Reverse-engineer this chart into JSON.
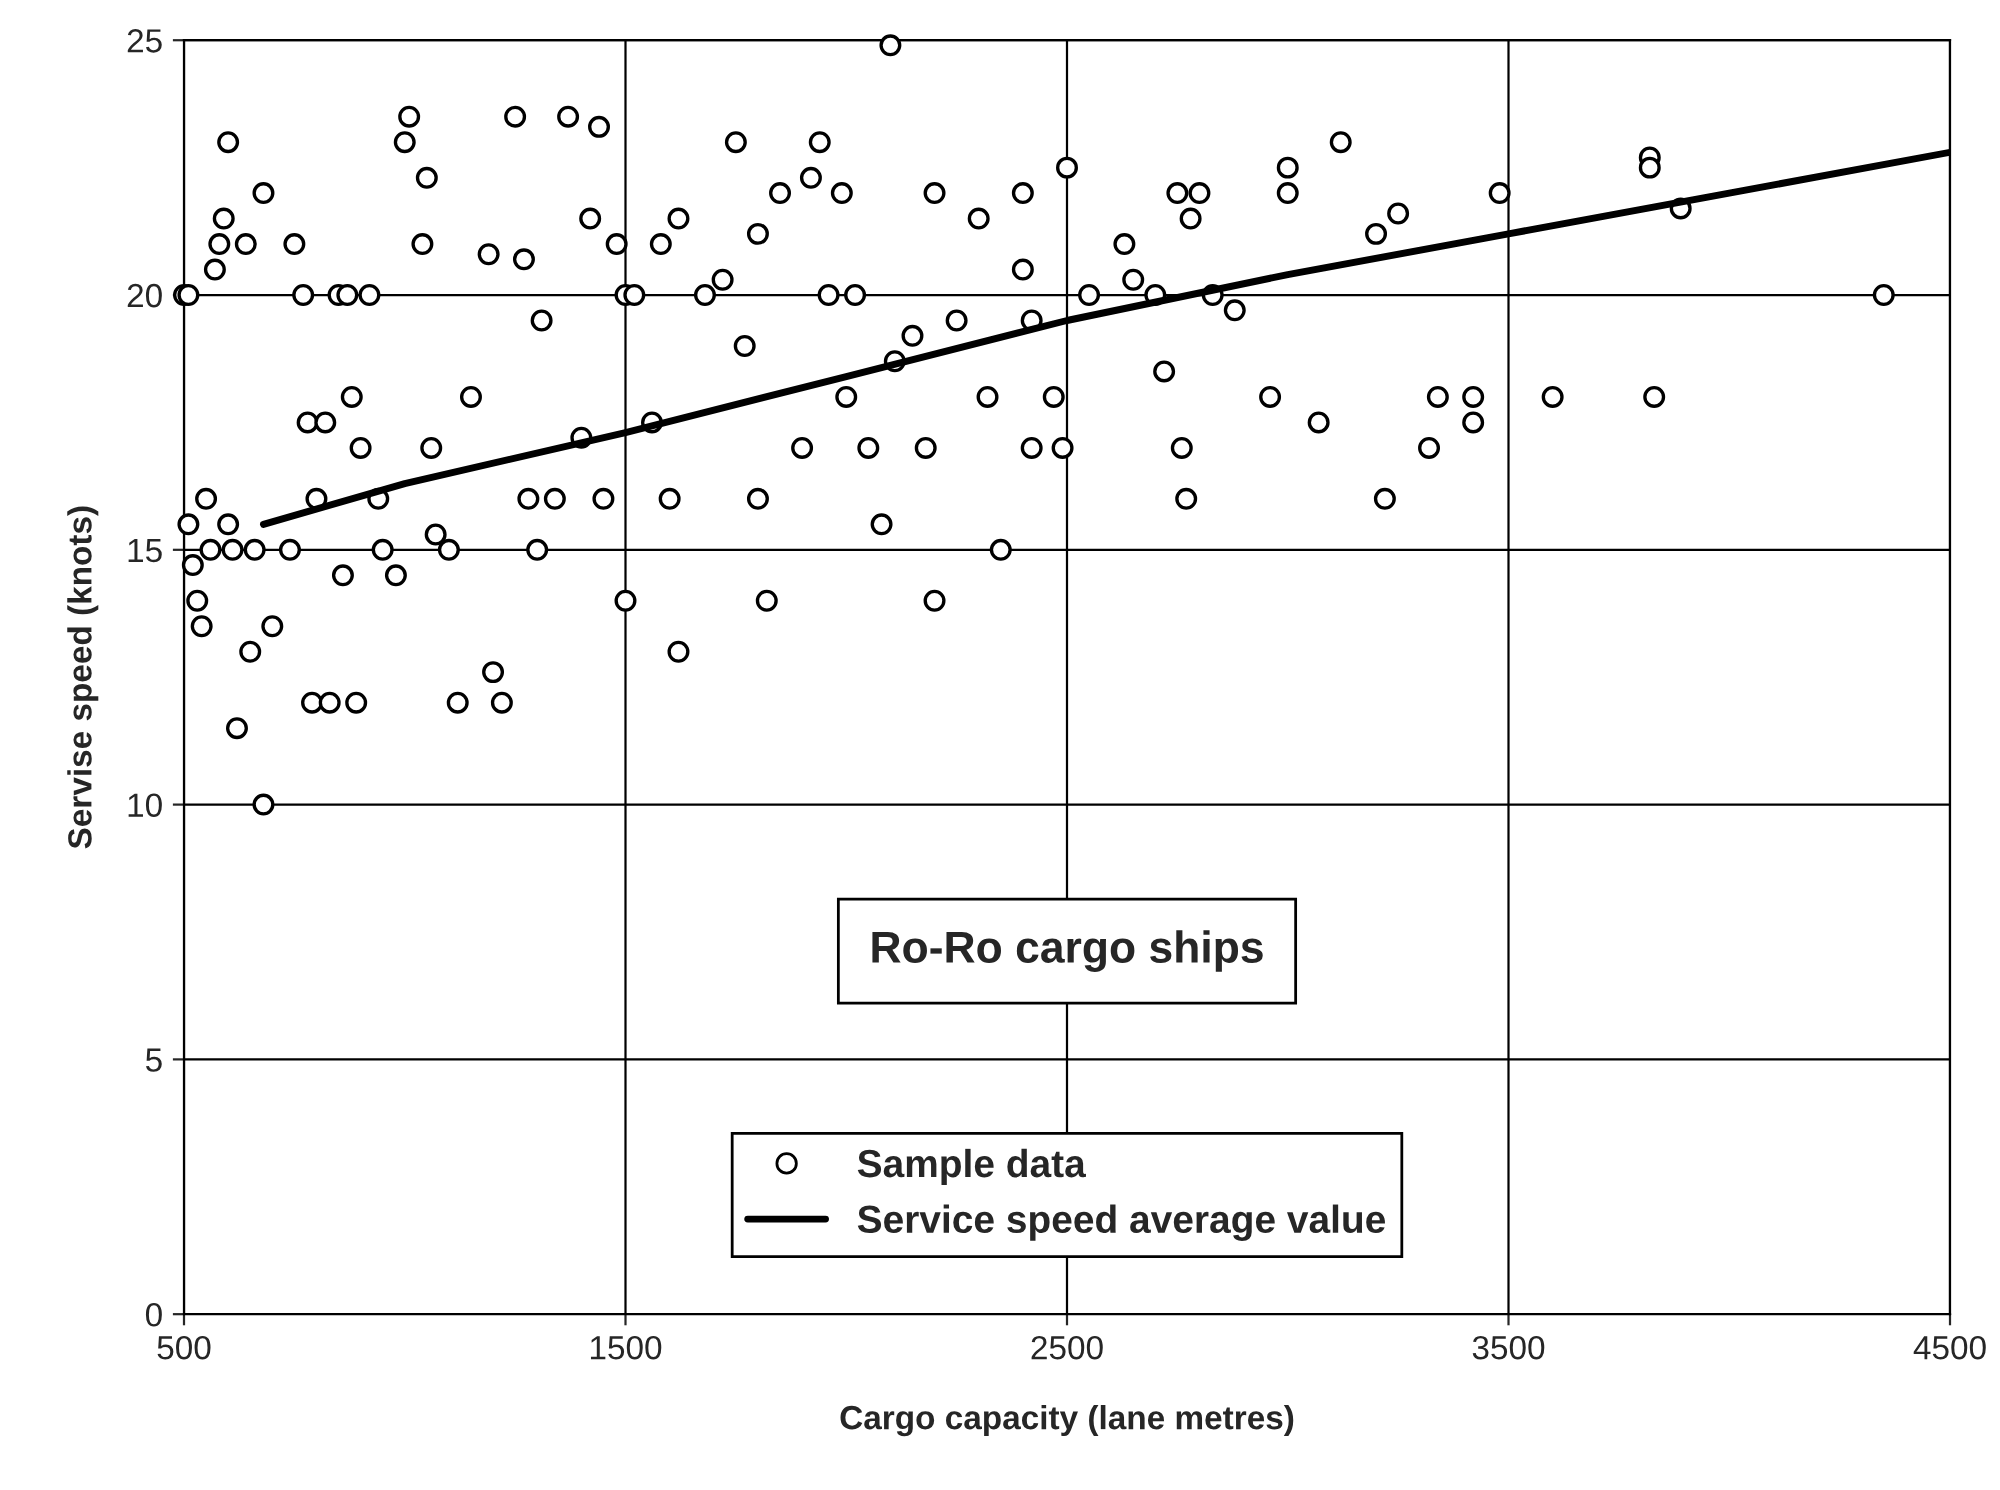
{
  "chart_data": {
    "type": "scatter",
    "xlabel": "Cargo capacity (lane metres)",
    "ylabel": "Servise speed (knots)",
    "xlim": [
      500,
      4500
    ],
    "xticks": [
      500,
      1500,
      2500,
      3500,
      4500
    ],
    "ylim": [
      0,
      25
    ],
    "yticks": [
      0,
      5,
      10,
      15,
      20,
      25
    ],
    "grid": true,
    "legend": "bottom",
    "annotations": [
      "Ro-Ro cargo ships"
    ],
    "series": [
      {
        "name": "Sample data",
        "marker": "circle",
        "color": "#000000",
        "x": [
          500,
          510,
          510,
          520,
          530,
          540,
          550,
          560,
          570,
          580,
          590,
          600,
          600,
          610,
          620,
          640,
          650,
          660,
          680,
          680,
          700,
          740,
          750,
          770,
          780,
          790,
          800,
          820,
          830,
          850,
          860,
          870,
          880,
          890,
          900,
          920,
          940,
          950,
          980,
          1000,
          1010,
          1040,
          1050,
          1060,
          1070,
          1100,
          1120,
          1150,
          1190,
          1200,
          1220,
          1250,
          1270,
          1280,
          1300,
          1310,
          1340,
          1370,
          1400,
          1420,
          1440,
          1450,
          1480,
          1500,
          1500,
          1520,
          1560,
          1580,
          1600,
          1620,
          1620,
          1680,
          1720,
          1750,
          1770,
          1800,
          1800,
          1820,
          1850,
          1900,
          1920,
          1940,
          1960,
          1990,
          2000,
          2020,
          2050,
          2080,
          2100,
          2110,
          2150,
          2180,
          2200,
          2200,
          2250,
          2300,
          2320,
          2350,
          2400,
          2400,
          2420,
          2420,
          2470,
          2490,
          2500,
          2550,
          2630,
          2650,
          2700,
          2720,
          2750,
          2760,
          2770,
          2780,
          2800,
          2830,
          2880,
          2960,
          3000,
          3000,
          3070,
          3120,
          3200,
          3220,
          3250,
          3320,
          3340,
          3420,
          3420,
          3480,
          3600,
          3820,
          3820,
          3830,
          3890,
          4350
        ],
        "values": [
          20,
          20,
          15.5,
          14.7,
          14,
          13.5,
          16,
          15,
          20.5,
          21,
          21.5,
          23,
          15.5,
          15,
          11.5,
          21,
          13,
          15,
          10,
          22,
          13.5,
          15,
          21,
          20,
          17.5,
          12,
          16,
          17.5,
          12,
          20,
          14.5,
          20,
          18,
          12,
          17,
          20,
          16,
          15,
          14.5,
          23,
          23.5,
          21,
          22.3,
          17,
          15.3,
          15,
          12,
          18,
          20.8,
          12.6,
          12,
          23.5,
          20.7,
          16,
          15,
          19.5,
          16,
          23.5,
          17.2,
          21.5,
          23.3,
          16,
          21,
          20,
          14,
          20,
          17.5,
          21,
          16,
          21.5,
          13,
          20,
          20.3,
          23,
          19,
          21.2,
          16,
          14,
          22,
          17,
          22.3,
          23,
          20,
          22,
          18,
          20,
          17,
          15.5,
          24.9,
          18.7,
          19.2,
          17,
          14,
          22,
          19.5,
          21.5,
          18,
          15,
          22,
          20.5,
          19.5,
          17,
          18,
          17,
          22.5,
          20,
          21,
          20.3,
          20,
          18.5,
          22,
          17,
          16,
          21.5,
          22,
          20,
          19.7,
          18,
          22.5,
          22,
          17.5,
          23,
          21.2,
          16,
          21.6,
          17,
          18,
          17.5,
          18,
          22,
          18,
          22.7,
          22.5,
          18,
          21.7,
          20
        ]
      },
      {
        "name": "Service speed average value",
        "type": "line",
        "color": "#000000",
        "line_style": "solid",
        "x": [
          680,
          1000,
          1500,
          2000,
          2500,
          3000,
          3500,
          4000,
          4500
        ],
        "values": [
          15.5,
          16.3,
          17.3,
          18.4,
          19.5,
          20.4,
          21.2,
          22.0,
          22.8
        ]
      }
    ]
  }
}
